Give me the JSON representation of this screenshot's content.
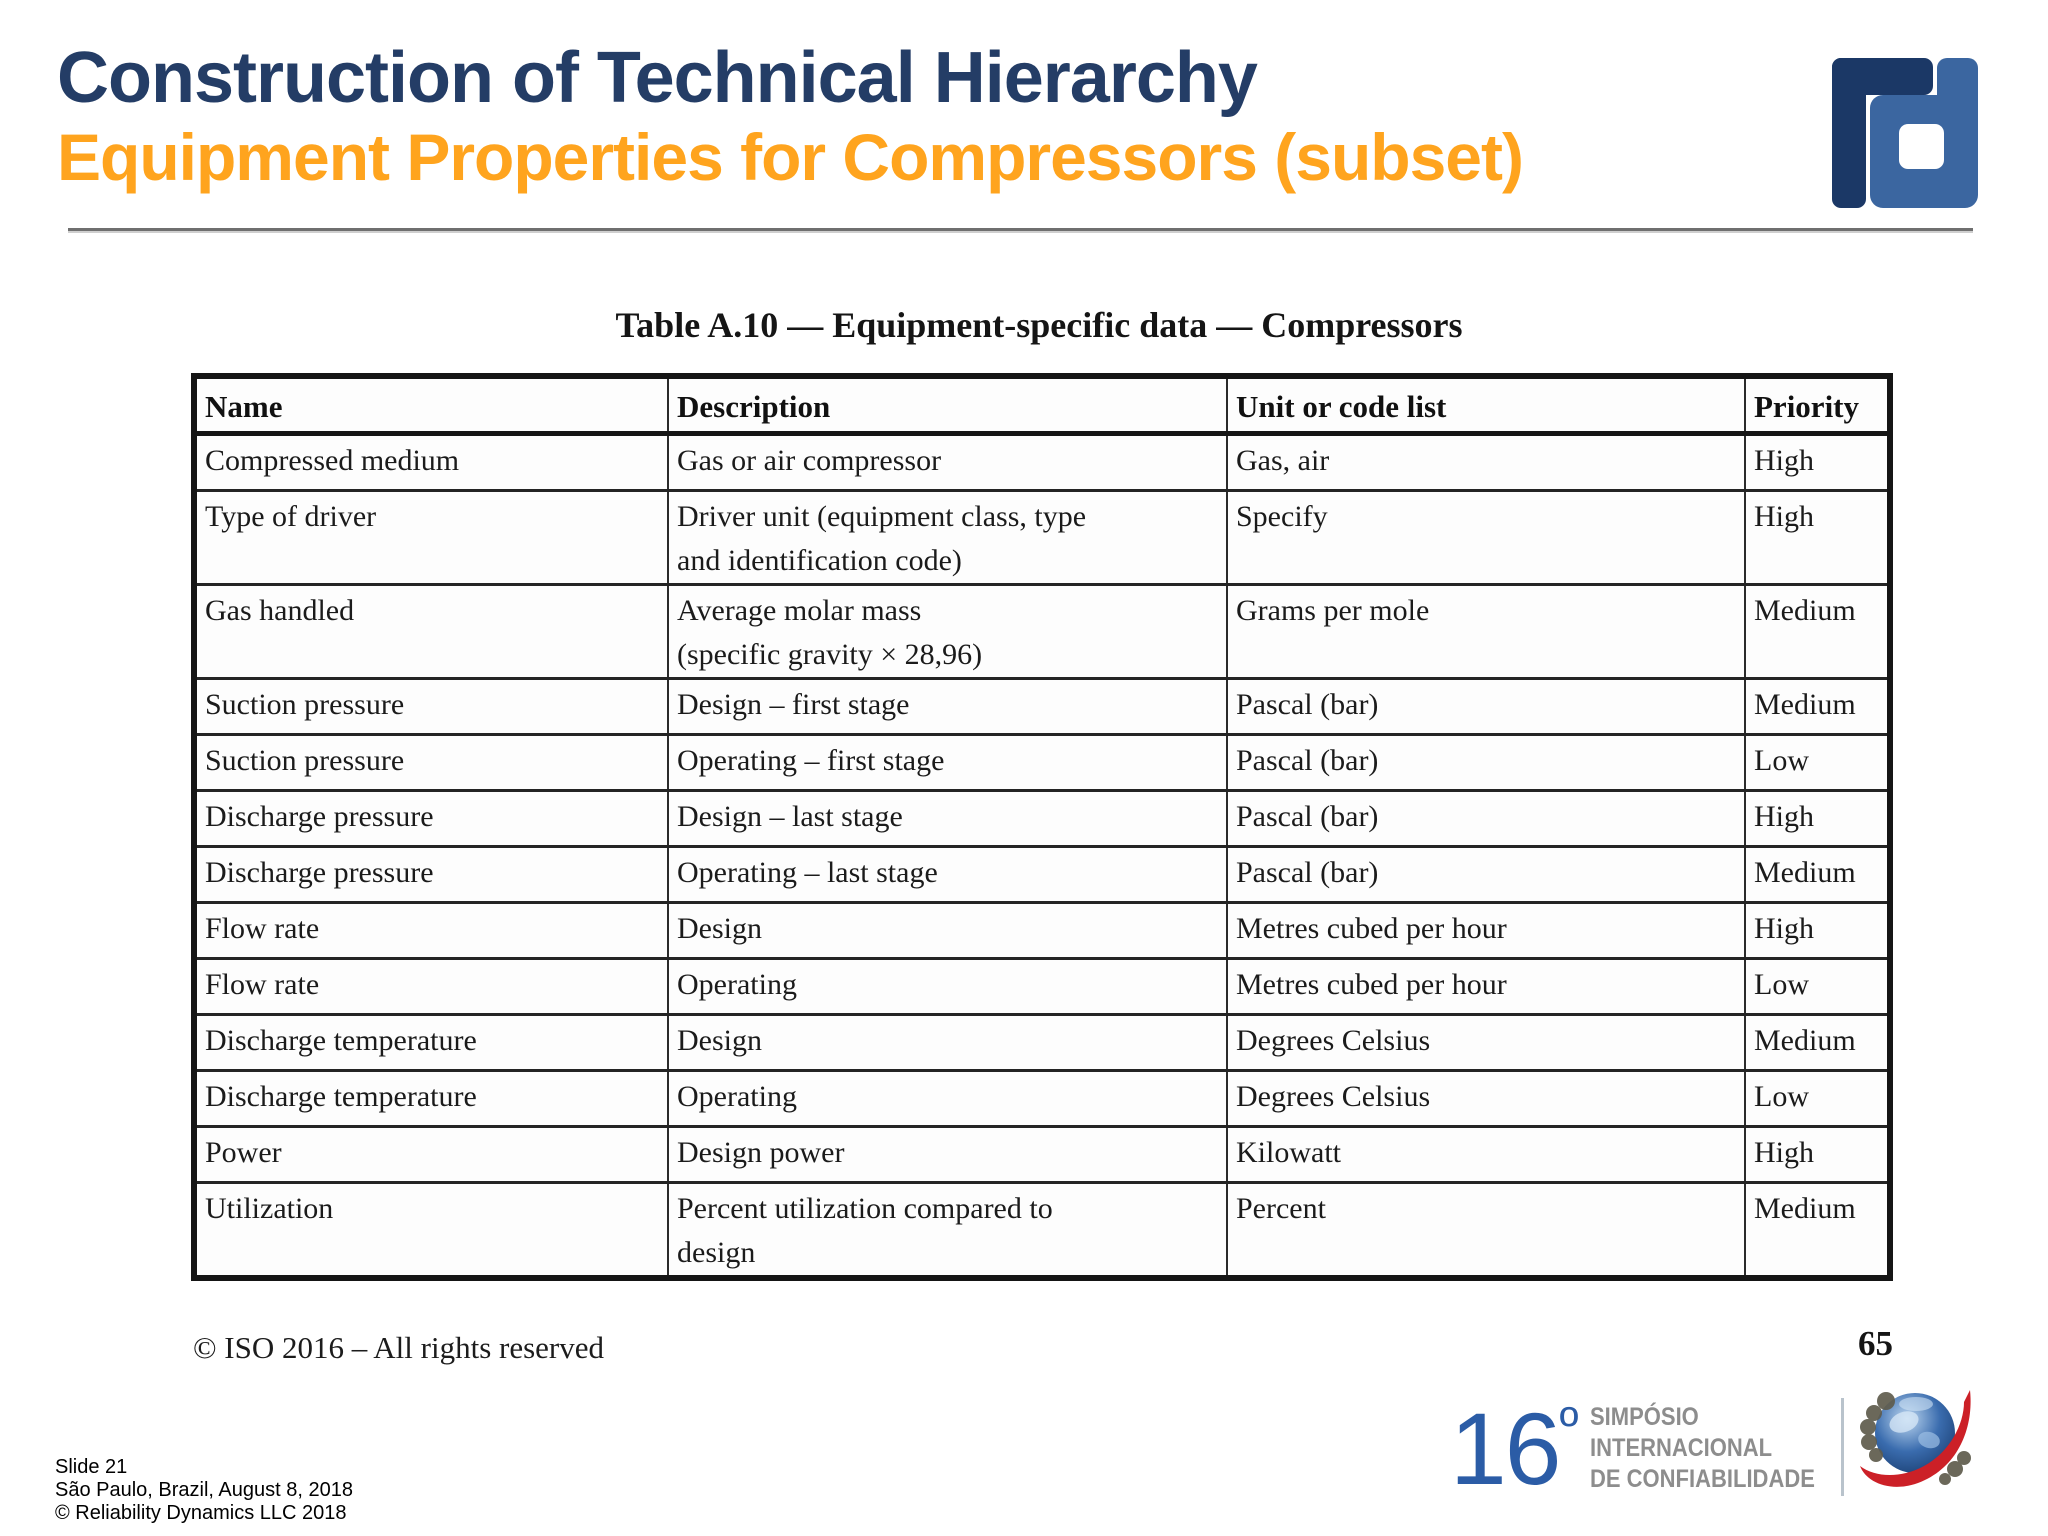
{
  "slide": {
    "title": "Construction of Technical Hierarchy",
    "subtitle": "Equipment Properties for Compressors (subset)",
    "page_number": "65",
    "iso_notice": "© ISO 2016 – All rights reserved",
    "footer": {
      "line1": "Slide 21",
      "line2": "São Paulo, Brazil, August 8, 2018",
      "line3": "© Reliability Dynamics LLC 2018"
    }
  },
  "table": {
    "caption": "Table A.10 — Equipment-specific data — Compressors",
    "headers": [
      "Name",
      "Description",
      "Unit or code list",
      "Priority"
    ],
    "rows": [
      {
        "name": "Compressed medium",
        "description": "Gas or air compressor",
        "unit": "Gas, air",
        "priority": "High"
      },
      {
        "name": "Type of driver",
        "description": "Driver unit (equipment class, type\nand identification code)",
        "unit": "Specify",
        "priority": "High"
      },
      {
        "name": "Gas handled",
        "description": "Average molar mass\n(specific gravity × 28,96)",
        "unit": "Grams per mole",
        "priority": "Medium"
      },
      {
        "name": "Suction pressure",
        "description": "Design – first stage",
        "unit": "Pascal (bar)",
        "priority": "Medium"
      },
      {
        "name": "Suction pressure",
        "description": "Operating – first stage",
        "unit": "Pascal (bar)",
        "priority": "Low"
      },
      {
        "name": "Discharge pressure",
        "description": "Design – last stage",
        "unit": "Pascal (bar)",
        "priority": "High"
      },
      {
        "name": "Discharge pressure",
        "description": "Operating – last stage",
        "unit": "Pascal (bar)",
        "priority": "Medium"
      },
      {
        "name": "Flow rate",
        "description": "Design",
        "unit": "Metres cubed per hour",
        "priority": "High"
      },
      {
        "name": "Flow rate",
        "description": "Operating",
        "unit": "Metres cubed per hour",
        "priority": "Low"
      },
      {
        "name": "Discharge temperature",
        "description": "Design",
        "unit": "Degrees Celsius",
        "priority": "Medium"
      },
      {
        "name": "Discharge temperature",
        "description": "Operating",
        "unit": "Degrees Celsius",
        "priority": "Low"
      },
      {
        "name": "Power",
        "description": "Design power",
        "unit": "Kilowatt",
        "priority": "High"
      },
      {
        "name": "Utilization",
        "description": "Percent utilization compared to\ndesign",
        "unit": "Percent",
        "priority": "Medium"
      }
    ]
  },
  "congress_logo": {
    "number": "16",
    "ordinal": "º",
    "line1": "SIMPÓSIO",
    "line2": "INTERNACIONAL",
    "line3": "DE CONFIABILIDADE"
  },
  "icons": {
    "rd_logo": "rd-monogram-icon",
    "globe": "globe-swoosh-icon"
  },
  "colors": {
    "title_navy": "#243d66",
    "subtitle_orange": "#ffa41e",
    "rd_dark_blue": "#1b3866",
    "rd_light_blue": "#3b66a0",
    "congress_blue": "#2b5ca6",
    "congress_gray": "#8d8d8d",
    "swoosh_red": "#cc2027",
    "table_border": "#151515"
  }
}
